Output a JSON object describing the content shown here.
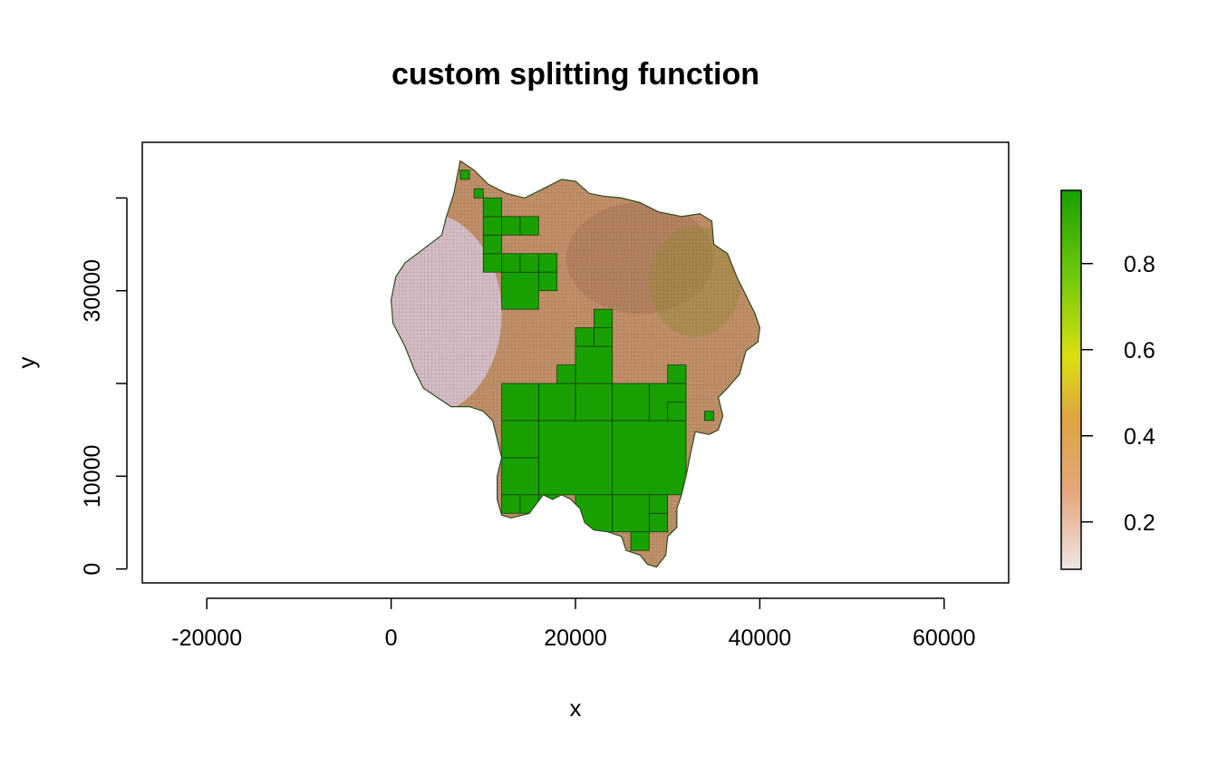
{
  "chart_data": {
    "type": "heatmap",
    "title": "custom splitting function",
    "xlabel": "x",
    "ylabel": "y",
    "xlim": [
      -27000,
      67000
    ],
    "ylim": [
      -1500,
      46000
    ],
    "x_ticks": [
      -20000,
      0,
      20000,
      40000,
      60000
    ],
    "x_tick_labels": [
      "-20000",
      "0",
      "20000",
      "40000",
      "60000"
    ],
    "y_ticks": [
      0,
      10000,
      20000,
      30000,
      40000
    ],
    "y_tick_labels": [
      "0",
      "10000",
      "",
      "30000",
      ""
    ],
    "legend": {
      "placement": "right",
      "range": [
        0.09,
        0.97
      ],
      "ticks": [
        0.2,
        0.4,
        0.6,
        0.8
      ],
      "tick_labels": [
        "0.2",
        "0.4",
        "0.6",
        "0.8"
      ],
      "gradient_colors": [
        "#eee6e6",
        "#e6a77c",
        "#e0a442",
        "#dbe00e",
        "#6cc80b",
        "#18a000"
      ]
    },
    "colors": {
      "high": "#18a000",
      "mid": "#c09068",
      "low": "#d8c6d8",
      "cell_border": "#1a3a10"
    },
    "region": {
      "boundary": [
        [
          7500,
          44000
        ],
        [
          9000,
          43000
        ],
        [
          10500,
          41500
        ],
        [
          12500,
          40500
        ],
        [
          14500,
          40000
        ],
        [
          16500,
          41000
        ],
        [
          18500,
          42000
        ],
        [
          20000,
          41800
        ],
        [
          21500,
          40500
        ],
        [
          23000,
          40200
        ],
        [
          25000,
          40000
        ],
        [
          27000,
          39500
        ],
        [
          29000,
          38500
        ],
        [
          31500,
          38000
        ],
        [
          33500,
          38300
        ],
        [
          34800,
          37500
        ],
        [
          35000,
          35000
        ],
        [
          36500,
          34000
        ],
        [
          37500,
          31500
        ],
        [
          38500,
          29500
        ],
        [
          39500,
          27500
        ],
        [
          40000,
          26000
        ],
        [
          39800,
          24500
        ],
        [
          38500,
          23500
        ],
        [
          37800,
          21000
        ],
        [
          36500,
          19500
        ],
        [
          35500,
          18500
        ],
        [
          36000,
          16500
        ],
        [
          35500,
          15000
        ],
        [
          34500,
          14500
        ],
        [
          33000,
          14800
        ],
        [
          32500,
          12500
        ],
        [
          32000,
          10000
        ],
        [
          31500,
          8000
        ],
        [
          31000,
          6500
        ],
        [
          31000,
          4500
        ],
        [
          30000,
          3500
        ],
        [
          29800,
          1500
        ],
        [
          28800,
          200
        ],
        [
          27800,
          500
        ],
        [
          27000,
          1500
        ],
        [
          25500,
          2000
        ],
        [
          25000,
          3500
        ],
        [
          23500,
          4000
        ],
        [
          22000,
          4200
        ],
        [
          21000,
          5000
        ],
        [
          20500,
          6500
        ],
        [
          19500,
          7500
        ],
        [
          18500,
          8000
        ],
        [
          17500,
          7500
        ],
        [
          16500,
          8000
        ],
        [
          15000,
          6000
        ],
        [
          13000,
          5500
        ],
        [
          12000,
          5800
        ],
        [
          11500,
          7500
        ],
        [
          11500,
          10000
        ],
        [
          12000,
          12000
        ],
        [
          11500,
          14000
        ],
        [
          11000,
          16000
        ],
        [
          10000,
          17000
        ],
        [
          8500,
          17500
        ],
        [
          6500,
          17500
        ],
        [
          5000,
          18500
        ],
        [
          3500,
          19500
        ],
        [
          2500,
          21500
        ],
        [
          1500,
          24000
        ],
        [
          200,
          26500
        ],
        [
          0,
          29000
        ],
        [
          500,
          31500
        ],
        [
          1500,
          33000
        ],
        [
          3500,
          34500
        ],
        [
          5500,
          36000
        ],
        [
          6000,
          38000
        ],
        [
          6800,
          40500
        ],
        [
          7200,
          42500
        ]
      ],
      "high_blocks": [
        [
          16000,
          8000,
          24000,
          16000
        ],
        [
          24000,
          8000,
          32000,
          16000
        ],
        [
          16000,
          16000,
          20000,
          20000
        ],
        [
          20000,
          16000,
          24000,
          20000
        ],
        [
          24000,
          16000,
          28000,
          20000
        ],
        [
          28000,
          16000,
          32000,
          20000
        ],
        [
          12000,
          16000,
          16000,
          20000
        ],
        [
          12000,
          8000,
          16000,
          12000
        ],
        [
          12000,
          12000,
          16000,
          16000
        ],
        [
          20000,
          20000,
          24000,
          24000
        ],
        [
          22000,
          24000,
          24000,
          26000
        ],
        [
          22000,
          26000,
          24000,
          28000
        ],
        [
          20000,
          24000,
          22000,
          26000
        ],
        [
          18000,
          20000,
          20000,
          22000
        ],
        [
          24000,
          4000,
          28000,
          8000
        ],
        [
          20000,
          4000,
          24000,
          8000
        ],
        [
          28000,
          4000,
          30000,
          6000
        ],
        [
          28000,
          6000,
          30000,
          8000
        ],
        [
          26000,
          2000,
          28000,
          4000
        ],
        [
          12000,
          28000,
          16000,
          32000
        ],
        [
          12000,
          32000,
          14000,
          34000
        ],
        [
          14000,
          32000,
          16000,
          34000
        ],
        [
          10000,
          36000,
          12000,
          38000
        ],
        [
          12000,
          36000,
          14000,
          38000
        ],
        [
          14000,
          36000,
          16000,
          38000
        ],
        [
          16000,
          32000,
          18000,
          34000
        ],
        [
          10000,
          32000,
          12000,
          34000
        ],
        [
          10000,
          34000,
          12000,
          36000
        ],
        [
          16000,
          30000,
          18000,
          32000
        ],
        [
          30000,
          20000,
          32000,
          22000
        ],
        [
          30000,
          16000,
          32000,
          18000
        ],
        [
          34000,
          16000,
          35000,
          17000
        ],
        [
          16000,
          6000,
          18000,
          8000
        ],
        [
          12000,
          6000,
          14000,
          8000
        ],
        [
          14000,
          6000,
          16000,
          8000
        ],
        [
          9000,
          40000,
          10000,
          41000
        ],
        [
          10000,
          38000,
          12000,
          40000
        ],
        [
          7500,
          42000,
          8500,
          43000
        ]
      ]
    }
  }
}
